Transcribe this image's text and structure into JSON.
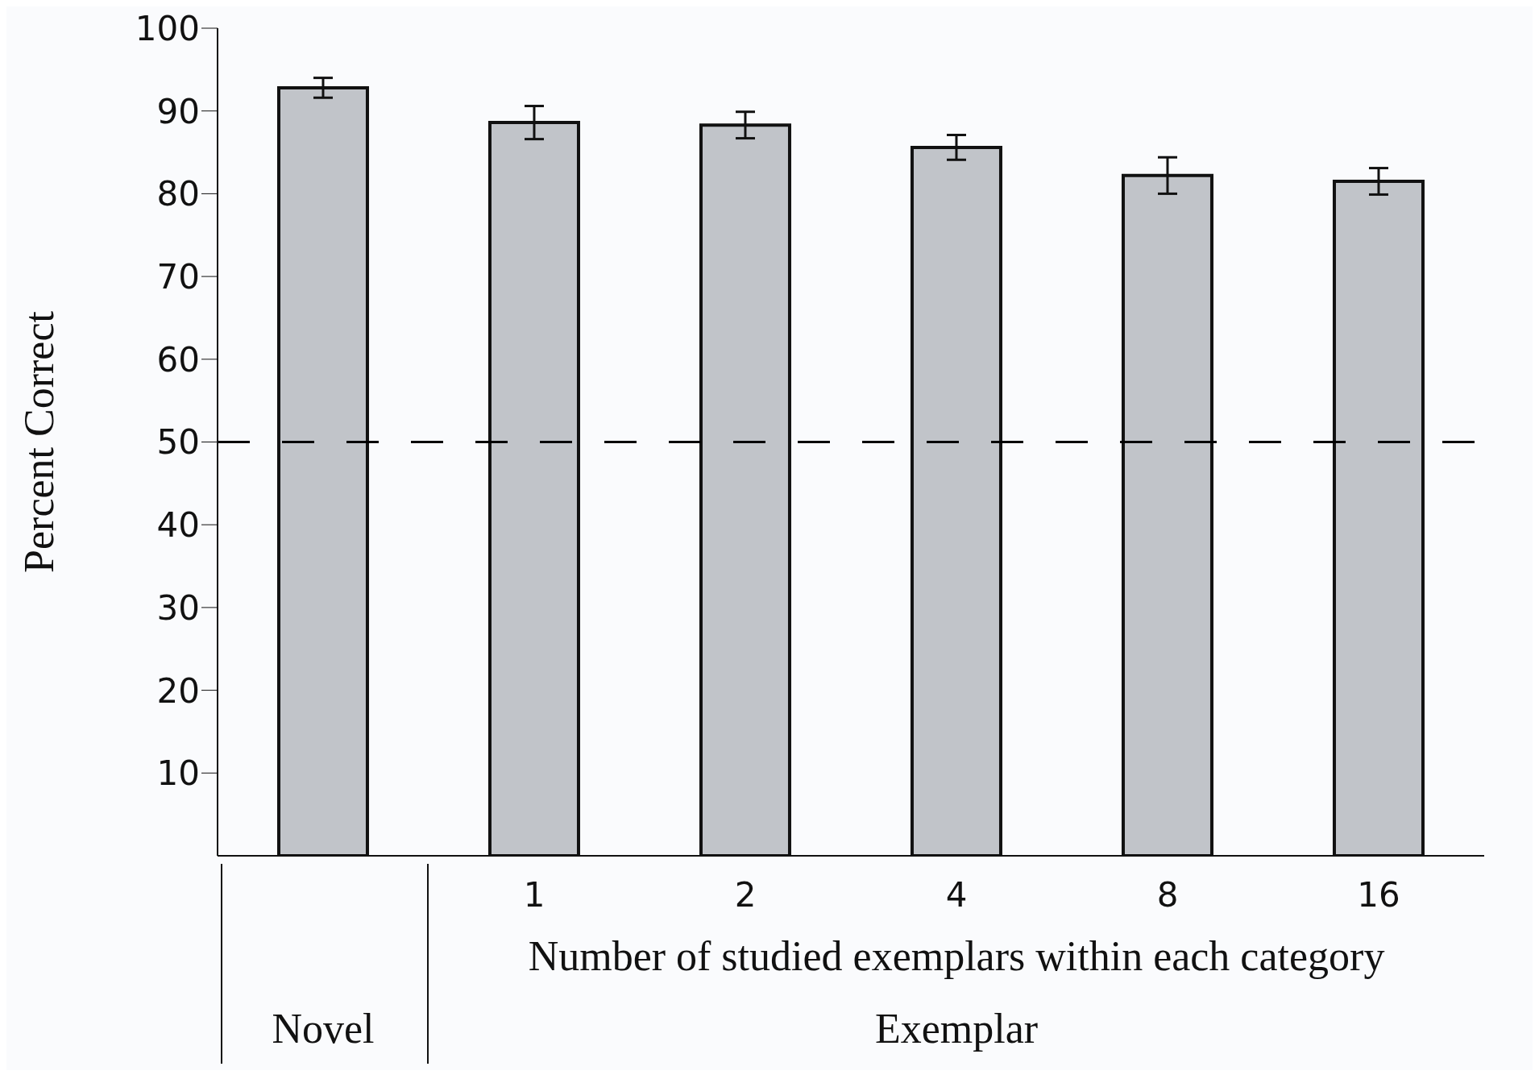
{
  "chart_data": {
    "type": "bar",
    "xlabel": "Number of studied exemplars within each category",
    "ylabel": "Percent Correct",
    "categories": [
      null,
      "1",
      "2",
      "4",
      "8",
      "16"
    ],
    "values": [
      92.8,
      88.6,
      88.3,
      85.6,
      82.2,
      81.5
    ],
    "errors": [
      1.2,
      2,
      1.6,
      1.5,
      2.2,
      1.6
    ],
    "color": "#c1c4c9",
    "ylim": [
      0,
      100
    ],
    "yticks": [
      10,
      20,
      30,
      40,
      50,
      60,
      70,
      80,
      90,
      100
    ],
    "grid": false,
    "ref_lines": [
      {
        "axis": "y",
        "value": 50,
        "line_style": "dashed",
        "color": "#000000"
      }
    ],
    "annotations": [
      "Novel",
      "Exemplar"
    ]
  }
}
